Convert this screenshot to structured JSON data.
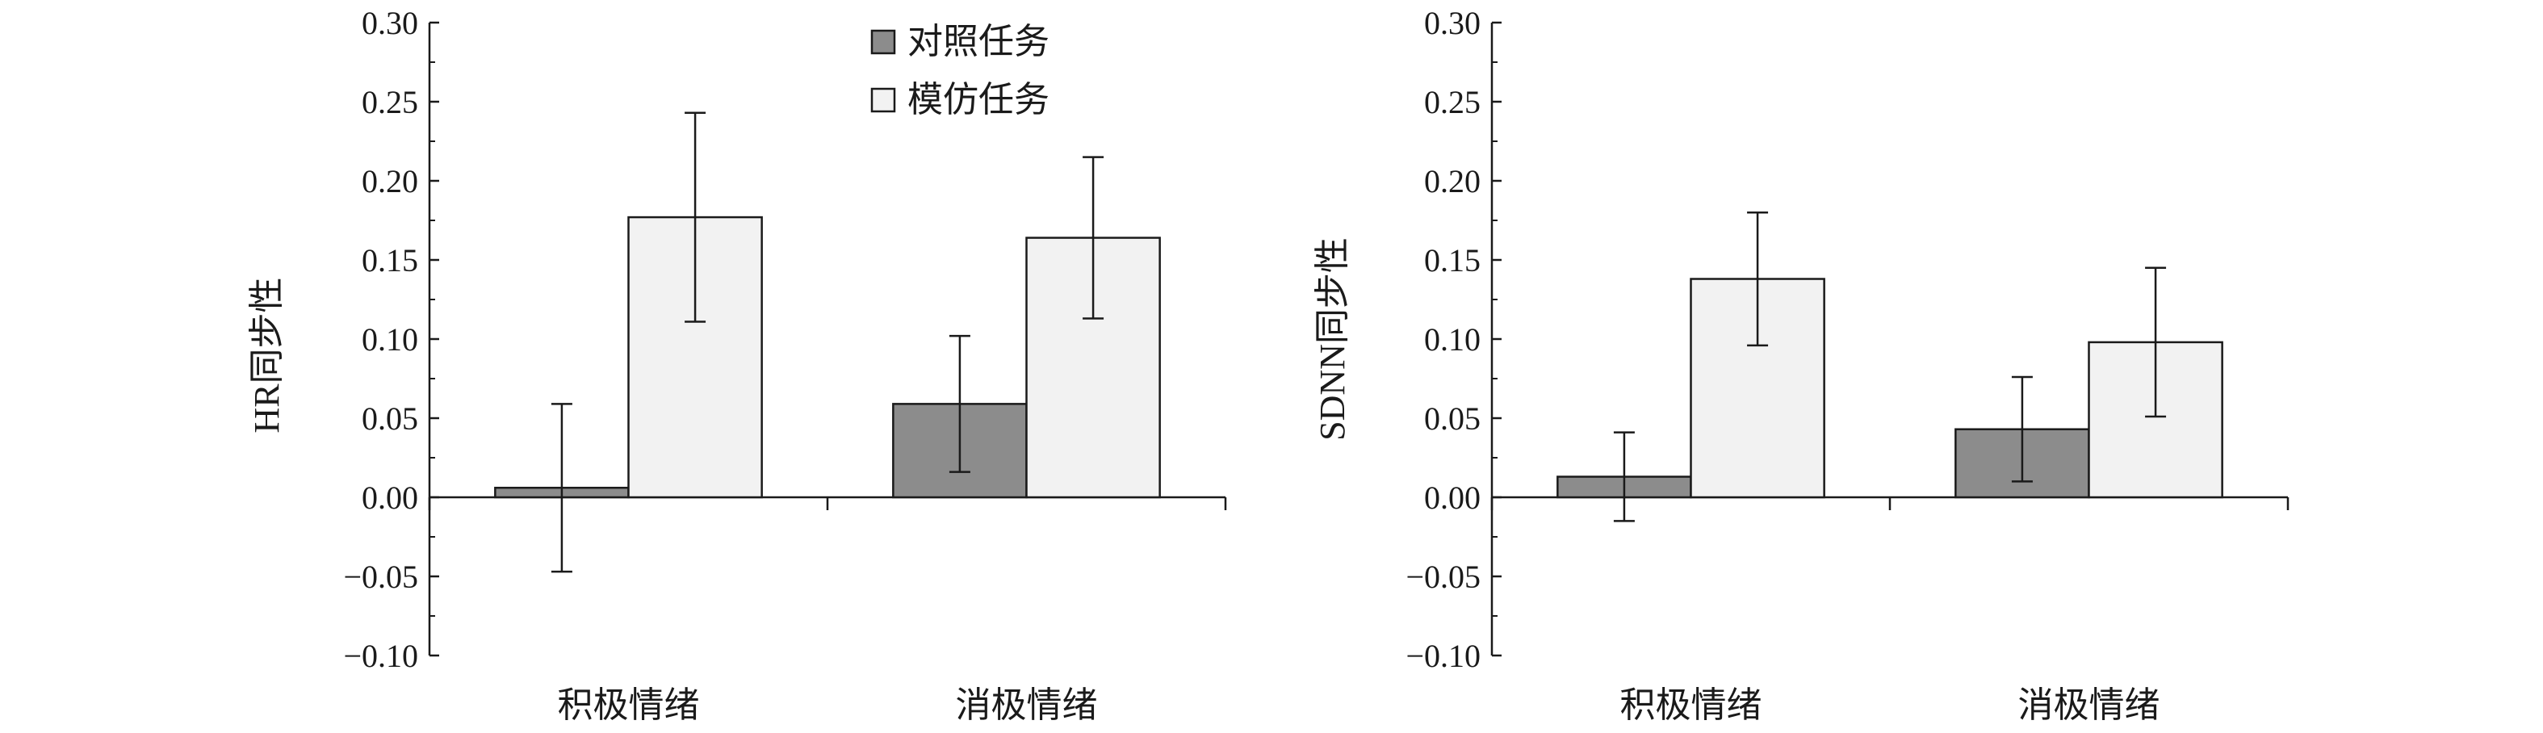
{
  "chart_data": [
    {
      "type": "bar",
      "categories": [
        "积极情绪",
        "消极情绪"
      ],
      "ylabel": "HR同步性",
      "ylim": [
        -0.1,
        0.3
      ],
      "yticks": [
        "0.30",
        "0.25",
        "0.20",
        "0.15",
        "0.10",
        "0.05",
        "0.00",
        "−0.05",
        "−0.10"
      ],
      "grid": false,
      "legend": "top-center",
      "series": [
        {
          "name": "对照任务",
          "color": "#8c8c8c",
          "values": [
            0.006,
            0.059
          ],
          "error": [
            0.053,
            0.043
          ]
        },
        {
          "name": "模仿任务",
          "color": "#f2f2f2",
          "values": [
            0.177,
            0.164
          ],
          "error": [
            0.066,
            0.051
          ]
        }
      ]
    },
    {
      "type": "bar",
      "categories": [
        "积极情绪",
        "消极情绪"
      ],
      "ylabel": "SDNN同步性",
      "ylim": [
        -0.1,
        0.3
      ],
      "yticks": [
        "0.30",
        "0.25",
        "0.20",
        "0.15",
        "0.10",
        "0.05",
        "0.00",
        "−0.05",
        "−0.10"
      ],
      "grid": false,
      "series": [
        {
          "name": "对照任务",
          "color": "#8c8c8c",
          "values": [
            0.013,
            0.043
          ],
          "error": [
            0.028,
            0.033
          ]
        },
        {
          "name": "模仿任务",
          "color": "#f2f2f2",
          "values": [
            0.138,
            0.098
          ],
          "error": [
            0.042,
            0.047
          ]
        }
      ]
    }
  ]
}
